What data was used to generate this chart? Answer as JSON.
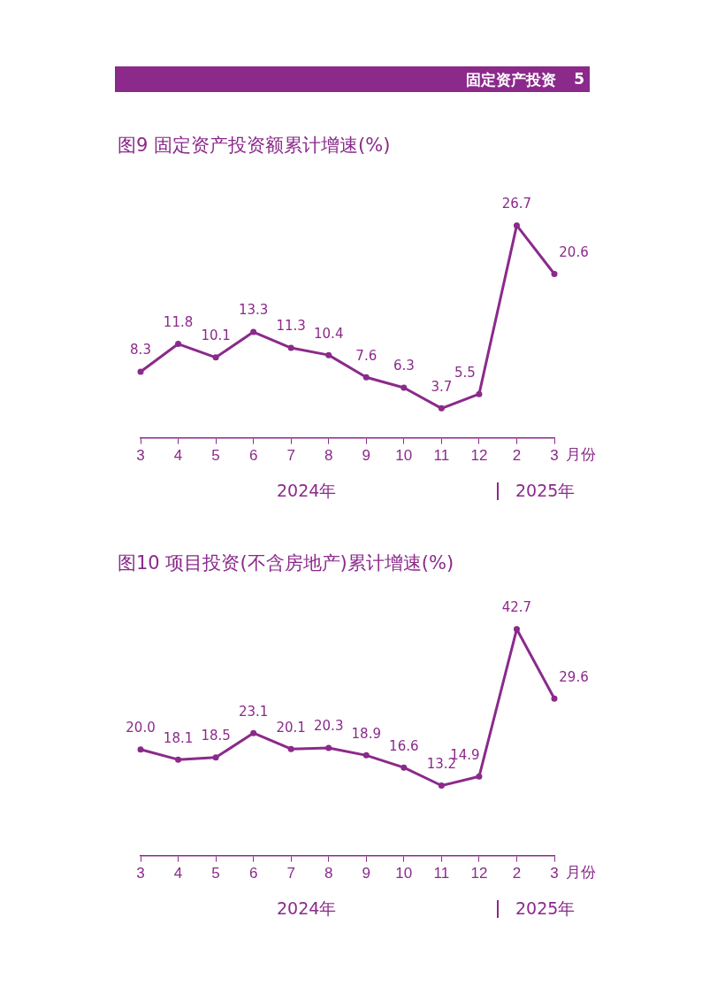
{
  "chart_data": [
    {
      "type": "other",
      "title": "固定资产投资",
      "annotations": [
        "5"
      ]
    },
    {
      "type": "line",
      "title": "图9  固定资产投资额累计增速(%)",
      "xlabel": "月份",
      "categories": [
        "3",
        "4",
        "5",
        "6",
        "7",
        "8",
        "9",
        "10",
        "11",
        "12",
        "2",
        "3"
      ],
      "series": [
        {
          "color": "#8b2a8b",
          "values": [
            8.3,
            11.8,
            10.1,
            13.3,
            11.3,
            10.4,
            7.6,
            6.3,
            3.7,
            5.5,
            26.7,
            20.6
          ]
        }
      ],
      "data_labels": true,
      "marker": "circle",
      "line_style": "solid",
      "grid": false,
      "legend": false,
      "tick_labels": "x",
      "annotations": [
        "2024年",
        "2025年"
      ]
    },
    {
      "type": "line",
      "title": "图10  项目投资(不含房地产)累计增速(%)",
      "xlabel": "月份",
      "categories": [
        "3",
        "4",
        "5",
        "6",
        "7",
        "8",
        "9",
        "10",
        "11",
        "12",
        "2",
        "3"
      ],
      "series": [
        {
          "color": "#8b2a8b",
          "values": [
            20.0,
            18.1,
            18.5,
            23.1,
            20.1,
            20.3,
            18.9,
            16.6,
            13.2,
            14.9,
            42.7,
            29.6
          ],
          "value_labels": [
            "20.0",
            "18.1",
            "18.5",
            "23.1",
            "20.1",
            "20.3",
            "18.9",
            "16.6",
            "13.2",
            "14.9",
            "42.7",
            "29.6"
          ]
        }
      ],
      "marker": "circle",
      "line_style": "solid",
      "grid": false,
      "legend": false,
      "tick_labels": "x",
      "annotations": [
        "2024年",
        "2025年"
      ]
    }
  ]
}
